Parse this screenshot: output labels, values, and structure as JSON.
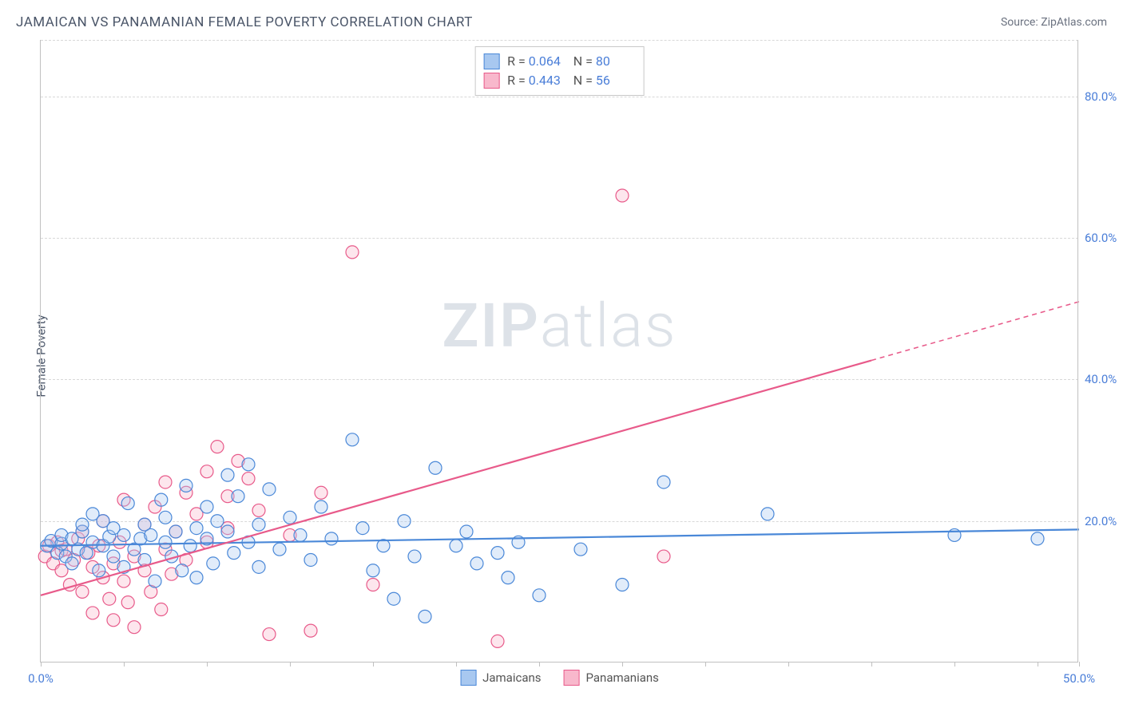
{
  "chart": {
    "title": "JAMAICAN VS PANAMANIAN FEMALE POVERTY CORRELATION CHART",
    "source": "Source: ZipAtlas.com",
    "y_axis_label": "Female Poverty",
    "watermark_main": "ZIP",
    "watermark_sub": "atlas",
    "type": "scatter",
    "background_color": "#ffffff",
    "grid_color": "#d8d8d8",
    "axis_color": "#c0c0c0",
    "text_color": "#4a5568",
    "value_color": "#4a7ed8",
    "x_domain": [
      0,
      50
    ],
    "y_domain": [
      0,
      88
    ],
    "x_ticks": [
      0,
      4,
      8,
      12,
      16,
      20,
      24,
      28,
      32,
      36,
      40,
      44,
      48,
      50
    ],
    "x_tick_labels": {
      "0": "0.0%",
      "50": "50.0%"
    },
    "y_gridlines": [
      20,
      40,
      60,
      80,
      88
    ],
    "y_tick_labels": {
      "20": "20.0%",
      "40": "40.0%",
      "60": "60.0%",
      "80": "80.0%"
    },
    "marker_radius": 8,
    "marker_fill_opacity": 0.35,
    "marker_stroke_width": 1.2,
    "trend_line_width": 2.2,
    "series": [
      {
        "name": "Jamaicans",
        "color": "#4a88d8",
        "fill": "#a8c8f0",
        "R": "0.064",
        "N": "80",
        "trend": {
          "x1": 0,
          "y1": 16.5,
          "x2": 50,
          "y2": 18.8,
          "dash_from_x": 50
        },
        "points": [
          [
            0.3,
            16.5
          ],
          [
            0.5,
            17.2
          ],
          [
            0.8,
            15.5
          ],
          [
            1.0,
            16.8
          ],
          [
            1.0,
            18.0
          ],
          [
            1.2,
            15.0
          ],
          [
            1.5,
            17.5
          ],
          [
            1.5,
            14.0
          ],
          [
            1.8,
            16.0
          ],
          [
            2.0,
            18.5
          ],
          [
            2.0,
            19.5
          ],
          [
            2.2,
            15.5
          ],
          [
            2.5,
            21.0
          ],
          [
            2.5,
            17.0
          ],
          [
            2.8,
            13.0
          ],
          [
            3.0,
            16.5
          ],
          [
            3.0,
            20.0
          ],
          [
            3.3,
            17.8
          ],
          [
            3.5,
            19.0
          ],
          [
            3.5,
            15.0
          ],
          [
            4.0,
            18.0
          ],
          [
            4.0,
            13.5
          ],
          [
            4.2,
            22.5
          ],
          [
            4.5,
            16.0
          ],
          [
            4.8,
            17.5
          ],
          [
            5.0,
            14.5
          ],
          [
            5.0,
            19.5
          ],
          [
            5.3,
            18.0
          ],
          [
            5.5,
            11.5
          ],
          [
            5.8,
            23.0
          ],
          [
            6.0,
            17.0
          ],
          [
            6.0,
            20.5
          ],
          [
            6.3,
            15.0
          ],
          [
            6.5,
            18.5
          ],
          [
            6.8,
            13.0
          ],
          [
            7.0,
            25.0
          ],
          [
            7.2,
            16.5
          ],
          [
            7.5,
            19.0
          ],
          [
            7.5,
            12.0
          ],
          [
            8.0,
            17.5
          ],
          [
            8.0,
            22.0
          ],
          [
            8.3,
            14.0
          ],
          [
            8.5,
            20.0
          ],
          [
            9.0,
            18.5
          ],
          [
            9.0,
            26.5
          ],
          [
            9.3,
            15.5
          ],
          [
            9.5,
            23.5
          ],
          [
            10.0,
            28.0
          ],
          [
            10.0,
            17.0
          ],
          [
            10.5,
            19.5
          ],
          [
            10.5,
            13.5
          ],
          [
            11.0,
            24.5
          ],
          [
            11.5,
            16.0
          ],
          [
            12.0,
            20.5
          ],
          [
            12.5,
            18.0
          ],
          [
            13.0,
            14.5
          ],
          [
            13.5,
            22.0
          ],
          [
            14.0,
            17.5
          ],
          [
            15.0,
            31.5
          ],
          [
            15.5,
            19.0
          ],
          [
            16.0,
            13.0
          ],
          [
            16.5,
            16.5
          ],
          [
            17.0,
            9.0
          ],
          [
            17.5,
            20.0
          ],
          [
            18.0,
            15.0
          ],
          [
            18.5,
            6.5
          ],
          [
            19.0,
            27.5
          ],
          [
            20.0,
            16.5
          ],
          [
            20.5,
            18.5
          ],
          [
            21.0,
            14.0
          ],
          [
            22.0,
            15.5
          ],
          [
            22.5,
            12.0
          ],
          [
            23.0,
            17.0
          ],
          [
            24.0,
            9.5
          ],
          [
            26.0,
            16.0
          ],
          [
            28.0,
            11.0
          ],
          [
            30.0,
            25.5
          ],
          [
            35.0,
            21.0
          ],
          [
            44.0,
            18.0
          ],
          [
            48.0,
            17.5
          ]
        ]
      },
      {
        "name": "Panamanians",
        "color": "#e85a8a",
        "fill": "#f8b8cc",
        "R": "0.443",
        "N": "56",
        "trend": {
          "x1": 0,
          "y1": 9.5,
          "x2": 50,
          "y2": 51.0,
          "dash_from_x": 40
        },
        "points": [
          [
            0.2,
            15.0
          ],
          [
            0.4,
            16.5
          ],
          [
            0.6,
            14.0
          ],
          [
            0.8,
            17.0
          ],
          [
            1.0,
            15.8
          ],
          [
            1.0,
            13.0
          ],
          [
            1.2,
            16.0
          ],
          [
            1.4,
            11.0
          ],
          [
            1.6,
            14.5
          ],
          [
            1.8,
            17.5
          ],
          [
            2.0,
            18.5
          ],
          [
            2.0,
            10.0
          ],
          [
            2.3,
            15.5
          ],
          [
            2.5,
            13.5
          ],
          [
            2.5,
            7.0
          ],
          [
            2.8,
            16.5
          ],
          [
            3.0,
            12.0
          ],
          [
            3.0,
            20.0
          ],
          [
            3.3,
            9.0
          ],
          [
            3.5,
            14.0
          ],
          [
            3.5,
            6.0
          ],
          [
            3.8,
            17.0
          ],
          [
            4.0,
            11.5
          ],
          [
            4.0,
            23.0
          ],
          [
            4.2,
            8.5
          ],
          [
            4.5,
            15.0
          ],
          [
            4.5,
            5.0
          ],
          [
            5.0,
            13.0
          ],
          [
            5.0,
            19.5
          ],
          [
            5.3,
            10.0
          ],
          [
            5.5,
            22.0
          ],
          [
            5.8,
            7.5
          ],
          [
            6.0,
            16.0
          ],
          [
            6.0,
            25.5
          ],
          [
            6.3,
            12.5
          ],
          [
            6.5,
            18.5
          ],
          [
            7.0,
            24.0
          ],
          [
            7.0,
            14.5
          ],
          [
            7.5,
            21.0
          ],
          [
            8.0,
            27.0
          ],
          [
            8.0,
            17.0
          ],
          [
            8.5,
            30.5
          ],
          [
            9.0,
            23.5
          ],
          [
            9.0,
            19.0
          ],
          [
            9.5,
            28.5
          ],
          [
            10.0,
            26.0
          ],
          [
            10.5,
            21.5
          ],
          [
            11.0,
            4.0
          ],
          [
            12.0,
            18.0
          ],
          [
            13.0,
            4.5
          ],
          [
            13.5,
            24.0
          ],
          [
            15.0,
            58.0
          ],
          [
            16.0,
            11.0
          ],
          [
            22.0,
            3.0
          ],
          [
            28.0,
            66.0
          ],
          [
            30.0,
            15.0
          ]
        ]
      }
    ],
    "legend": {
      "series1_label": "Jamaicans",
      "series2_label": "Panamanians"
    },
    "statbox": {
      "r_label": "R =",
      "n_label": "N ="
    }
  }
}
